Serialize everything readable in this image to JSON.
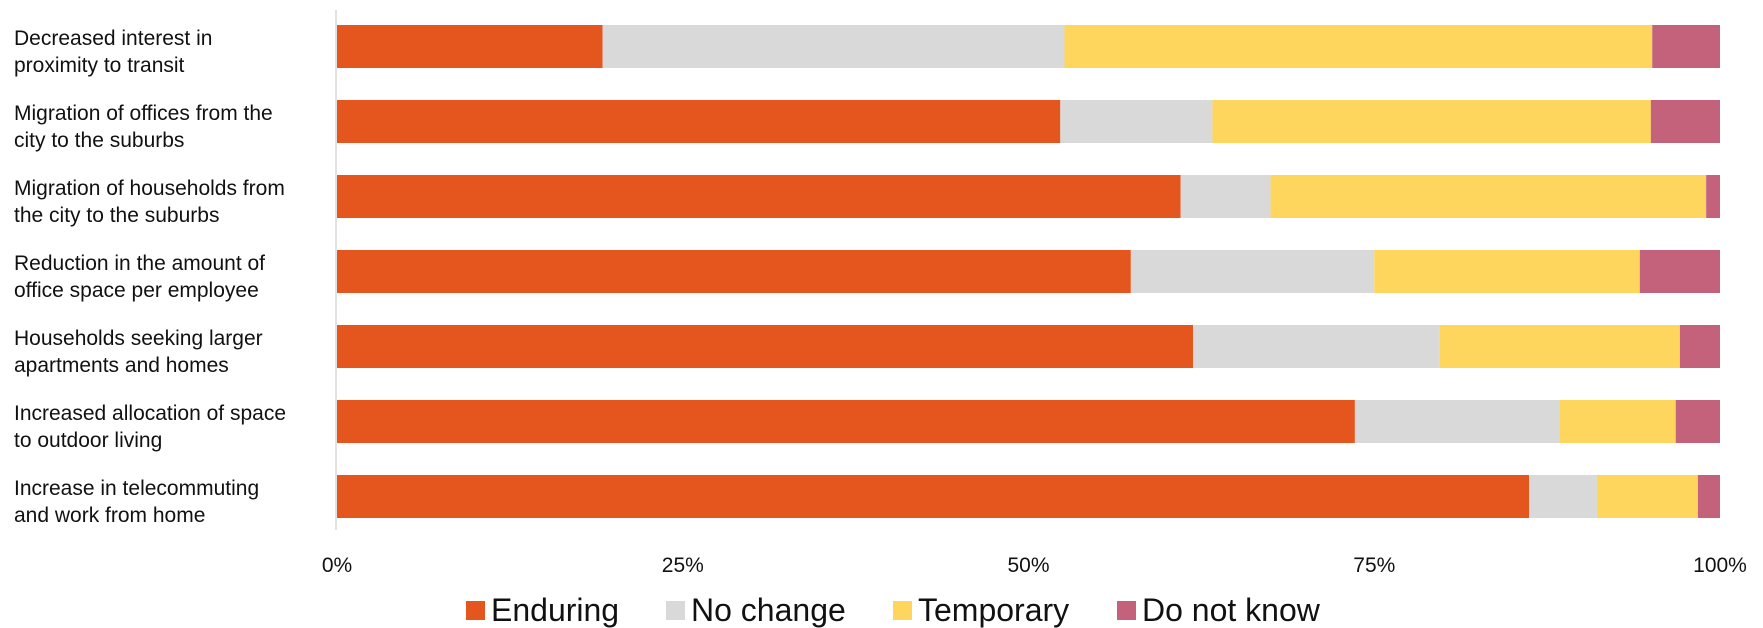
{
  "chart_data": {
    "type": "bar",
    "orientation": "horizontal",
    "stacked": "percent",
    "categories": [
      [
        "Decreased interest in",
        "proximity to transit"
      ],
      [
        "Migration of offices from the",
        "city to the suburbs"
      ],
      [
        "Migration of households from",
        "the city to the suburbs"
      ],
      [
        "Reduction in the amount of",
        "office space per employee"
      ],
      [
        "Households seeking larger",
        "apartments and homes"
      ],
      [
        "Increased allocation of space",
        "to outdoor living"
      ],
      [
        "Increase in telecommuting",
        "and work from home"
      ]
    ],
    "series": [
      {
        "name": "Enduring",
        "color": "#E5561E",
        "values": [
          19.2,
          52.3,
          61.0,
          57.4,
          61.9,
          73.6,
          86.2
        ]
      },
      {
        "name": "No change",
        "color": "#D9D9D9",
        "values": [
          33.4,
          11.0,
          6.5,
          17.6,
          17.8,
          14.8,
          4.9
        ]
      },
      {
        "name": "Temporary",
        "color": "#FED65E",
        "values": [
          42.5,
          31.7,
          31.5,
          19.2,
          17.4,
          8.4,
          7.3
        ]
      },
      {
        "name": "Do not know",
        "color": "#C4627C",
        "values": [
          4.9,
          5.0,
          1.0,
          5.8,
          2.9,
          3.2,
          1.6
        ]
      }
    ],
    "x_ticks": [
      "0%",
      "25%",
      "50%",
      "75%",
      "100%"
    ],
    "xlim": [
      0,
      100
    ],
    "grid": false,
    "legend_position": "bottom"
  }
}
